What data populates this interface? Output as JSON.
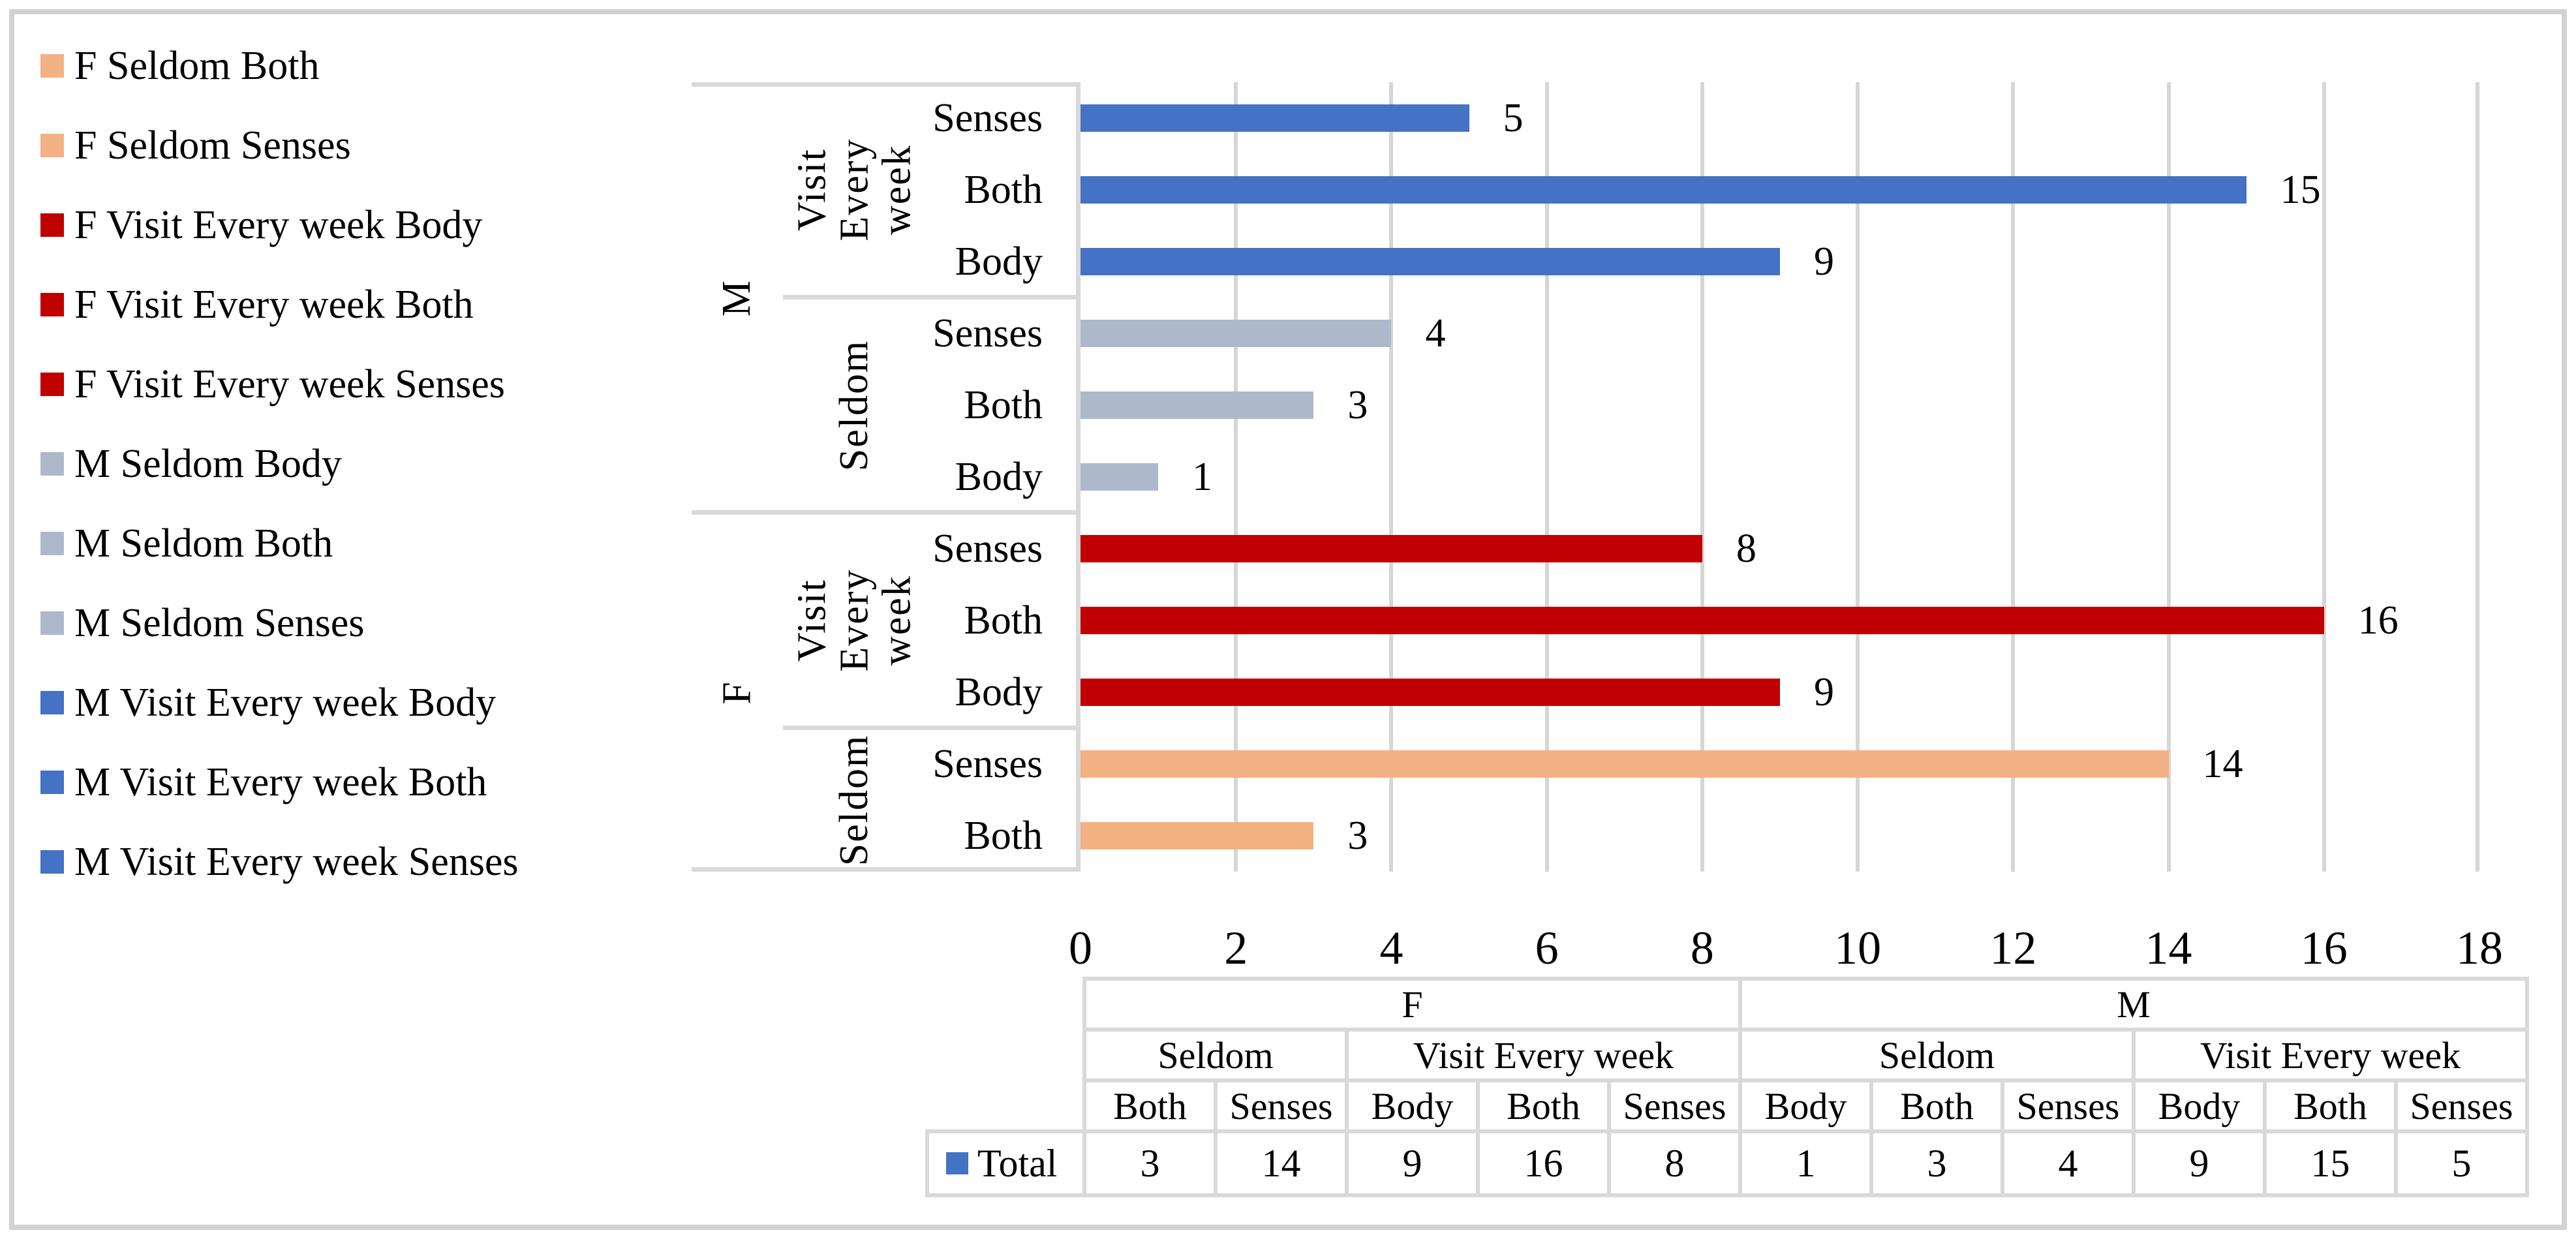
{
  "chart_data": {
    "type": "bar",
    "orientation": "horizontal",
    "title": "",
    "xlabel": "",
    "ylabel": "",
    "series_name": "Total",
    "xlim": [
      0,
      18
    ],
    "x_ticks": [
      "0",
      "2",
      "4",
      "6",
      "8",
      "10",
      "12",
      "14",
      "16",
      "18"
    ],
    "grid": true,
    "legend_position": "left",
    "palette": {
      "m_visit_every_week": "#4472C4",
      "m_seldom": "#ADB9CA",
      "f_visit_every_week": "#C00000",
      "f_seldom": "#F4B183"
    },
    "rows": [
      {
        "gender": "M",
        "frequency": "Visit Every week",
        "category": "Senses",
        "value": 5,
        "color": "#4472C4"
      },
      {
        "gender": "M",
        "frequency": "Visit Every week",
        "category": "Both",
        "value": 15,
        "color": "#4472C4"
      },
      {
        "gender": "M",
        "frequency": "Visit Every week",
        "category": "Body",
        "value": 9,
        "color": "#4472C4"
      },
      {
        "gender": "M",
        "frequency": "Seldom",
        "category": "Senses",
        "value": 4,
        "color": "#ADB9CA"
      },
      {
        "gender": "M",
        "frequency": "Seldom",
        "category": "Both",
        "value": 3,
        "color": "#ADB9CA"
      },
      {
        "gender": "M",
        "frequency": "Seldom",
        "category": "Body",
        "value": 1,
        "color": "#ADB9CA"
      },
      {
        "gender": "F",
        "frequency": "Visit Every week",
        "category": "Senses",
        "value": 8,
        "color": "#C00000"
      },
      {
        "gender": "F",
        "frequency": "Visit Every week",
        "category": "Both",
        "value": 16,
        "color": "#C00000"
      },
      {
        "gender": "F",
        "frequency": "Visit Every week",
        "category": "Body",
        "value": 9,
        "color": "#C00000"
      },
      {
        "gender": "F",
        "frequency": "Seldom",
        "category": "Senses",
        "value": 14,
        "color": "#F4B183"
      },
      {
        "gender": "F",
        "frequency": "Seldom",
        "category": "Both",
        "value": 3,
        "color": "#F4B183"
      }
    ]
  },
  "legend": {
    "items": [
      {
        "label": "F Seldom Both",
        "color": "#F4B183"
      },
      {
        "label": "F Seldom Senses",
        "color": "#F4B183"
      },
      {
        "label": "F Visit Every week Body",
        "color": "#C00000"
      },
      {
        "label": "F Visit Every week Both",
        "color": "#C00000"
      },
      {
        "label": "F Visit Every week Senses",
        "color": "#C00000"
      },
      {
        "label": "M Seldom Body",
        "color": "#ADB9CA"
      },
      {
        "label": "M Seldom Both",
        "color": "#ADB9CA"
      },
      {
        "label": "M Seldom Senses",
        "color": "#ADB9CA"
      },
      {
        "label": "M Visit Every week Body",
        "color": "#4472C4"
      },
      {
        "label": "M Visit Every week Both",
        "color": "#4472C4"
      },
      {
        "label": "M Visit Every week Senses",
        "color": "#4472C4"
      }
    ]
  },
  "axis": {
    "genders": [
      {
        "label": "M"
      },
      {
        "label": "F"
      }
    ],
    "frequencies": [
      {
        "label": "Visit Every week"
      },
      {
        "label": "Seldom"
      },
      {
        "label": "Visit Every week"
      },
      {
        "label": "Seldom"
      }
    ]
  },
  "table": {
    "row_header": "Total",
    "marker_color": "#4472C4",
    "level1": [
      {
        "label": "F"
      },
      {
        "label": "M"
      }
    ],
    "level2": [
      {
        "label": "Seldom"
      },
      {
        "label": "Visit Every week"
      },
      {
        "label": "Seldom"
      },
      {
        "label": "Visit Every week"
      }
    ],
    "level3": [
      "Both",
      "Senses",
      "Body",
      "Both",
      "Senses",
      "Body",
      "Both",
      "Senses",
      "Body",
      "Both",
      "Senses"
    ],
    "values": [
      3,
      14,
      9,
      16,
      8,
      1,
      3,
      4,
      9,
      15,
      5
    ]
  }
}
